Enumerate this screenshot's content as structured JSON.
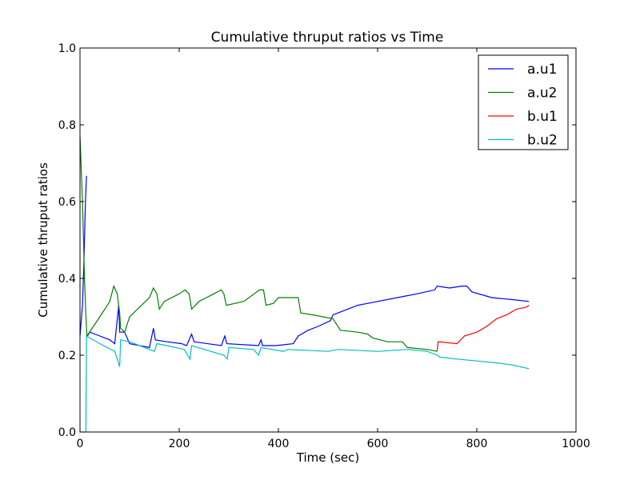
{
  "chart_data": {
    "type": "line",
    "title": "Cumulative thruput ratios vs Time",
    "xlabel": "Time (sec)",
    "ylabel": "Cumulative thruput ratios",
    "xlim": [
      0,
      1000
    ],
    "ylim": [
      0,
      1.0
    ],
    "xticks": [
      "0",
      "200",
      "400",
      "600",
      "800",
      "1000"
    ],
    "yticks": [
      "0.0",
      "0.2",
      "0.4",
      "0.6",
      "0.8",
      "1.0"
    ],
    "grid": false,
    "legend_position": "top-right",
    "series": [
      {
        "name": "a.u1",
        "color": "#0000ff",
        "segments": [
          [
            [
              0,
              0.25
            ],
            [
              5,
              0.33
            ],
            [
              8,
              0.45
            ],
            [
              11,
              0.6
            ],
            [
              13,
              0.667
            ]
          ],
          [
            [
              15,
              0.25
            ],
            [
              20,
              0.26
            ],
            [
              40,
              0.25
            ],
            [
              60,
              0.24
            ],
            [
              70,
              0.23
            ],
            [
              78,
              0.33
            ],
            [
              80,
              0.26
            ],
            [
              90,
              0.26
            ],
            [
              100,
              0.23
            ],
            [
              140,
              0.22
            ],
            [
              148,
              0.27
            ],
            [
              152,
              0.24
            ],
            [
              175,
              0.235
            ],
            [
              205,
              0.23
            ],
            [
              215,
              0.225
            ],
            [
              225,
              0.255
            ],
            [
              230,
              0.235
            ],
            [
              285,
              0.225
            ],
            [
              292,
              0.25
            ],
            [
              296,
              0.23
            ],
            [
              360,
              0.225
            ],
            [
              365,
              0.24
            ],
            [
              368,
              0.225
            ],
            [
              395,
              0.225
            ],
            [
              430,
              0.23
            ],
            [
              440,
              0.25
            ],
            [
              460,
              0.265
            ],
            [
              480,
              0.275
            ],
            [
              505,
              0.29
            ],
            [
              510,
              0.305
            ],
            [
              520,
              0.31
            ],
            [
              560,
              0.33
            ],
            [
              600,
              0.34
            ],
            [
              640,
              0.35
            ],
            [
              680,
              0.36
            ],
            [
              715,
              0.37
            ],
            [
              720,
              0.38
            ],
            [
              745,
              0.375
            ],
            [
              770,
              0.38
            ],
            [
              780,
              0.38
            ],
            [
              790,
              0.365
            ],
            [
              830,
              0.35
            ],
            [
              870,
              0.345
            ],
            [
              905,
              0.34
            ]
          ]
        ]
      },
      {
        "name": "a.u2",
        "color": "#008000",
        "segments": [
          [
            [
              0,
              0.77
            ],
            [
              5,
              0.6
            ],
            [
              9,
              0.4
            ],
            [
              12,
              0.3
            ],
            [
              14,
              0.25
            ]
          ],
          [
            [
              14,
              0.25
            ],
            [
              40,
              0.3
            ],
            [
              60,
              0.34
            ],
            [
              68,
              0.38
            ],
            [
              75,
              0.36
            ],
            [
              80,
              0.31
            ],
            [
              82,
              0.27
            ],
            [
              90,
              0.26
            ],
            [
              100,
              0.3
            ],
            [
              140,
              0.35
            ],
            [
              148,
              0.375
            ],
            [
              155,
              0.36
            ],
            [
              160,
              0.32
            ],
            [
              170,
              0.34
            ],
            [
              200,
              0.36
            ],
            [
              212,
              0.37
            ],
            [
              220,
              0.36
            ],
            [
              225,
              0.32
            ],
            [
              240,
              0.34
            ],
            [
              270,
              0.36
            ],
            [
              285,
              0.37
            ],
            [
              290,
              0.36
            ],
            [
              295,
              0.33
            ],
            [
              330,
              0.34
            ],
            [
              362,
              0.37
            ],
            [
              370,
              0.37
            ],
            [
              375,
              0.33
            ],
            [
              390,
              0.335
            ],
            [
              400,
              0.35
            ],
            [
              440,
              0.35
            ],
            [
              445,
              0.31
            ],
            [
              470,
              0.305
            ],
            [
              510,
              0.295
            ],
            [
              525,
              0.265
            ],
            [
              560,
              0.26
            ],
            [
              580,
              0.255
            ],
            [
              590,
              0.245
            ],
            [
              620,
              0.235
            ],
            [
              650,
              0.235
            ],
            [
              660,
              0.22
            ],
            [
              700,
              0.215
            ],
            [
              720,
              0.21
            ]
          ]
        ]
      },
      {
        "name": "b.u1",
        "color": "#ff0000",
        "segments": [
          [
            [
              720,
              0.21
            ],
            [
              722,
              0.235
            ],
            [
              760,
              0.23
            ],
            [
              775,
              0.25
            ],
            [
              800,
              0.26
            ],
            [
              820,
              0.275
            ],
            [
              840,
              0.295
            ],
            [
              860,
              0.305
            ],
            [
              880,
              0.32
            ],
            [
              900,
              0.325
            ],
            [
              905,
              0.33
            ]
          ]
        ]
      },
      {
        "name": "b.u2",
        "color": "#00bfbf",
        "segments": [
          [
            [
              0,
              0.0
            ],
            [
              10,
              0.0
            ]
          ],
          [
            [
              12,
              0.0
            ],
            [
              13,
              0.25
            ],
            [
              40,
              0.23
            ],
            [
              70,
              0.21
            ],
            [
              80,
              0.17
            ],
            [
              82,
              0.24
            ],
            [
              100,
              0.235
            ],
            [
              150,
              0.21
            ],
            [
              155,
              0.23
            ],
            [
              175,
              0.225
            ],
            [
              210,
              0.215
            ],
            [
              222,
              0.19
            ],
            [
              225,
              0.225
            ],
            [
              290,
              0.2
            ],
            [
              297,
              0.19
            ],
            [
              300,
              0.22
            ],
            [
              350,
              0.215
            ],
            [
              360,
              0.2
            ],
            [
              365,
              0.22
            ],
            [
              410,
              0.21
            ],
            [
              420,
              0.215
            ],
            [
              500,
              0.21
            ],
            [
              520,
              0.215
            ],
            [
              600,
              0.21
            ],
            [
              660,
              0.215
            ],
            [
              700,
              0.21
            ],
            [
              720,
              0.2
            ],
            [
              725,
              0.195
            ],
            [
              760,
              0.19
            ],
            [
              800,
              0.185
            ],
            [
              840,
              0.18
            ],
            [
              870,
              0.175
            ],
            [
              905,
              0.165
            ]
          ]
        ]
      }
    ]
  }
}
